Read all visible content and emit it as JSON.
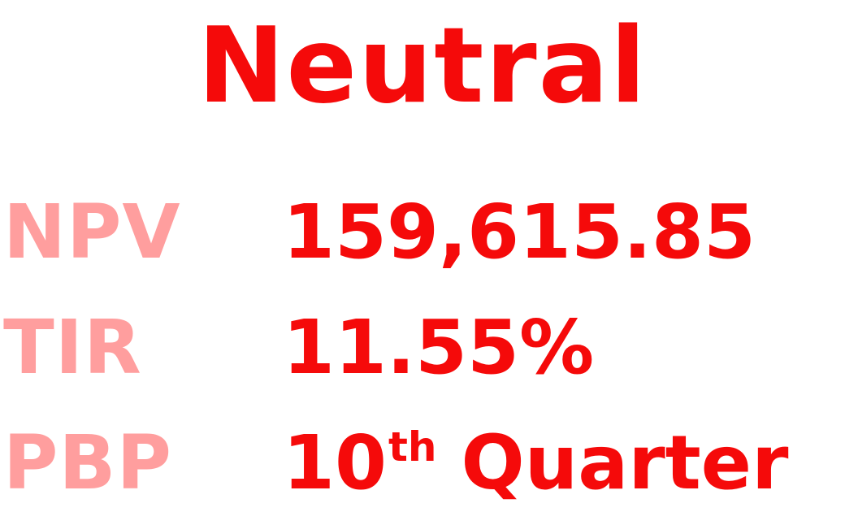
{
  "title": "Neutral",
  "metrics": {
    "npv": {
      "label": "NPV",
      "value": "159,615.85"
    },
    "tir": {
      "label": "TIR",
      "value": "11.55%"
    },
    "pbp": {
      "label": "PBP",
      "number": "10",
      "suffix": "th",
      "word": "Quarter"
    }
  },
  "colors": {
    "accent": "#f50a0a",
    "label": "#ff9e9e",
    "background": "#ffffff"
  }
}
